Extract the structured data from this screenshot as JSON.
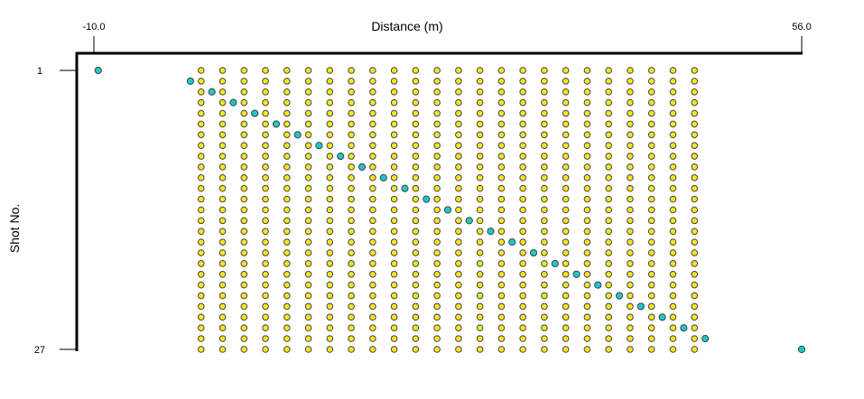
{
  "chart_data": {
    "type": "scatter",
    "xlabel": "Distance (m)",
    "ylabel": "Shot No.",
    "xlim": [
      -10.0,
      56.0
    ],
    "ylim": [
      1,
      27
    ],
    "x_ticks": [
      {
        "value": -10.0,
        "label": "-10.0"
      },
      {
        "value": 56.0,
        "label": "56.0"
      }
    ],
    "y_ticks": [
      {
        "value": 1,
        "label": "1"
      },
      {
        "value": 27,
        "label": "27"
      }
    ],
    "x_axis_position": "top",
    "y_axis_reversed": true,
    "grid": false,
    "legend": "none",
    "series": [
      {
        "role": "receivers",
        "marker": "circle",
        "color": "#f5e61e",
        "edge_color": "#444444",
        "x": [
          0.0,
          2.0,
          4.0,
          6.0,
          8.0,
          10.0,
          12.0,
          14.0,
          16.0,
          18.0,
          20.0,
          22.0,
          24.0,
          26.0,
          28.0,
          30.0,
          32.0,
          34.0,
          36.0,
          38.0,
          40.0,
          42.0,
          44.0,
          46.0
        ],
        "shots": [
          1,
          27
        ]
      },
      {
        "role": "sources",
        "marker": "circle",
        "color": "#1ec8c8",
        "edge_color": "#444444",
        "points": [
          {
            "x": -9.6,
            "y": 1
          },
          {
            "x": -1.0,
            "y": 2
          },
          {
            "x": 1.0,
            "y": 3
          },
          {
            "x": 3.0,
            "y": 4
          },
          {
            "x": 5.0,
            "y": 5
          },
          {
            "x": 7.0,
            "y": 6
          },
          {
            "x": 9.0,
            "y": 7
          },
          {
            "x": 11.0,
            "y": 8
          },
          {
            "x": 13.0,
            "y": 9
          },
          {
            "x": 15.0,
            "y": 10
          },
          {
            "x": 17.0,
            "y": 11
          },
          {
            "x": 19.0,
            "y": 12
          },
          {
            "x": 21.0,
            "y": 13
          },
          {
            "x": 23.0,
            "y": 14
          },
          {
            "x": 25.0,
            "y": 15
          },
          {
            "x": 27.0,
            "y": 16
          },
          {
            "x": 29.0,
            "y": 17
          },
          {
            "x": 31.0,
            "y": 18
          },
          {
            "x": 33.0,
            "y": 19
          },
          {
            "x": 35.0,
            "y": 20
          },
          {
            "x": 37.0,
            "y": 21
          },
          {
            "x": 39.0,
            "y": 22
          },
          {
            "x": 41.0,
            "y": 23
          },
          {
            "x": 43.0,
            "y": 24
          },
          {
            "x": 45.0,
            "y": 25
          },
          {
            "x": 47.0,
            "y": 26
          },
          {
            "x": 56.0,
            "y": 27
          }
        ]
      }
    ]
  }
}
